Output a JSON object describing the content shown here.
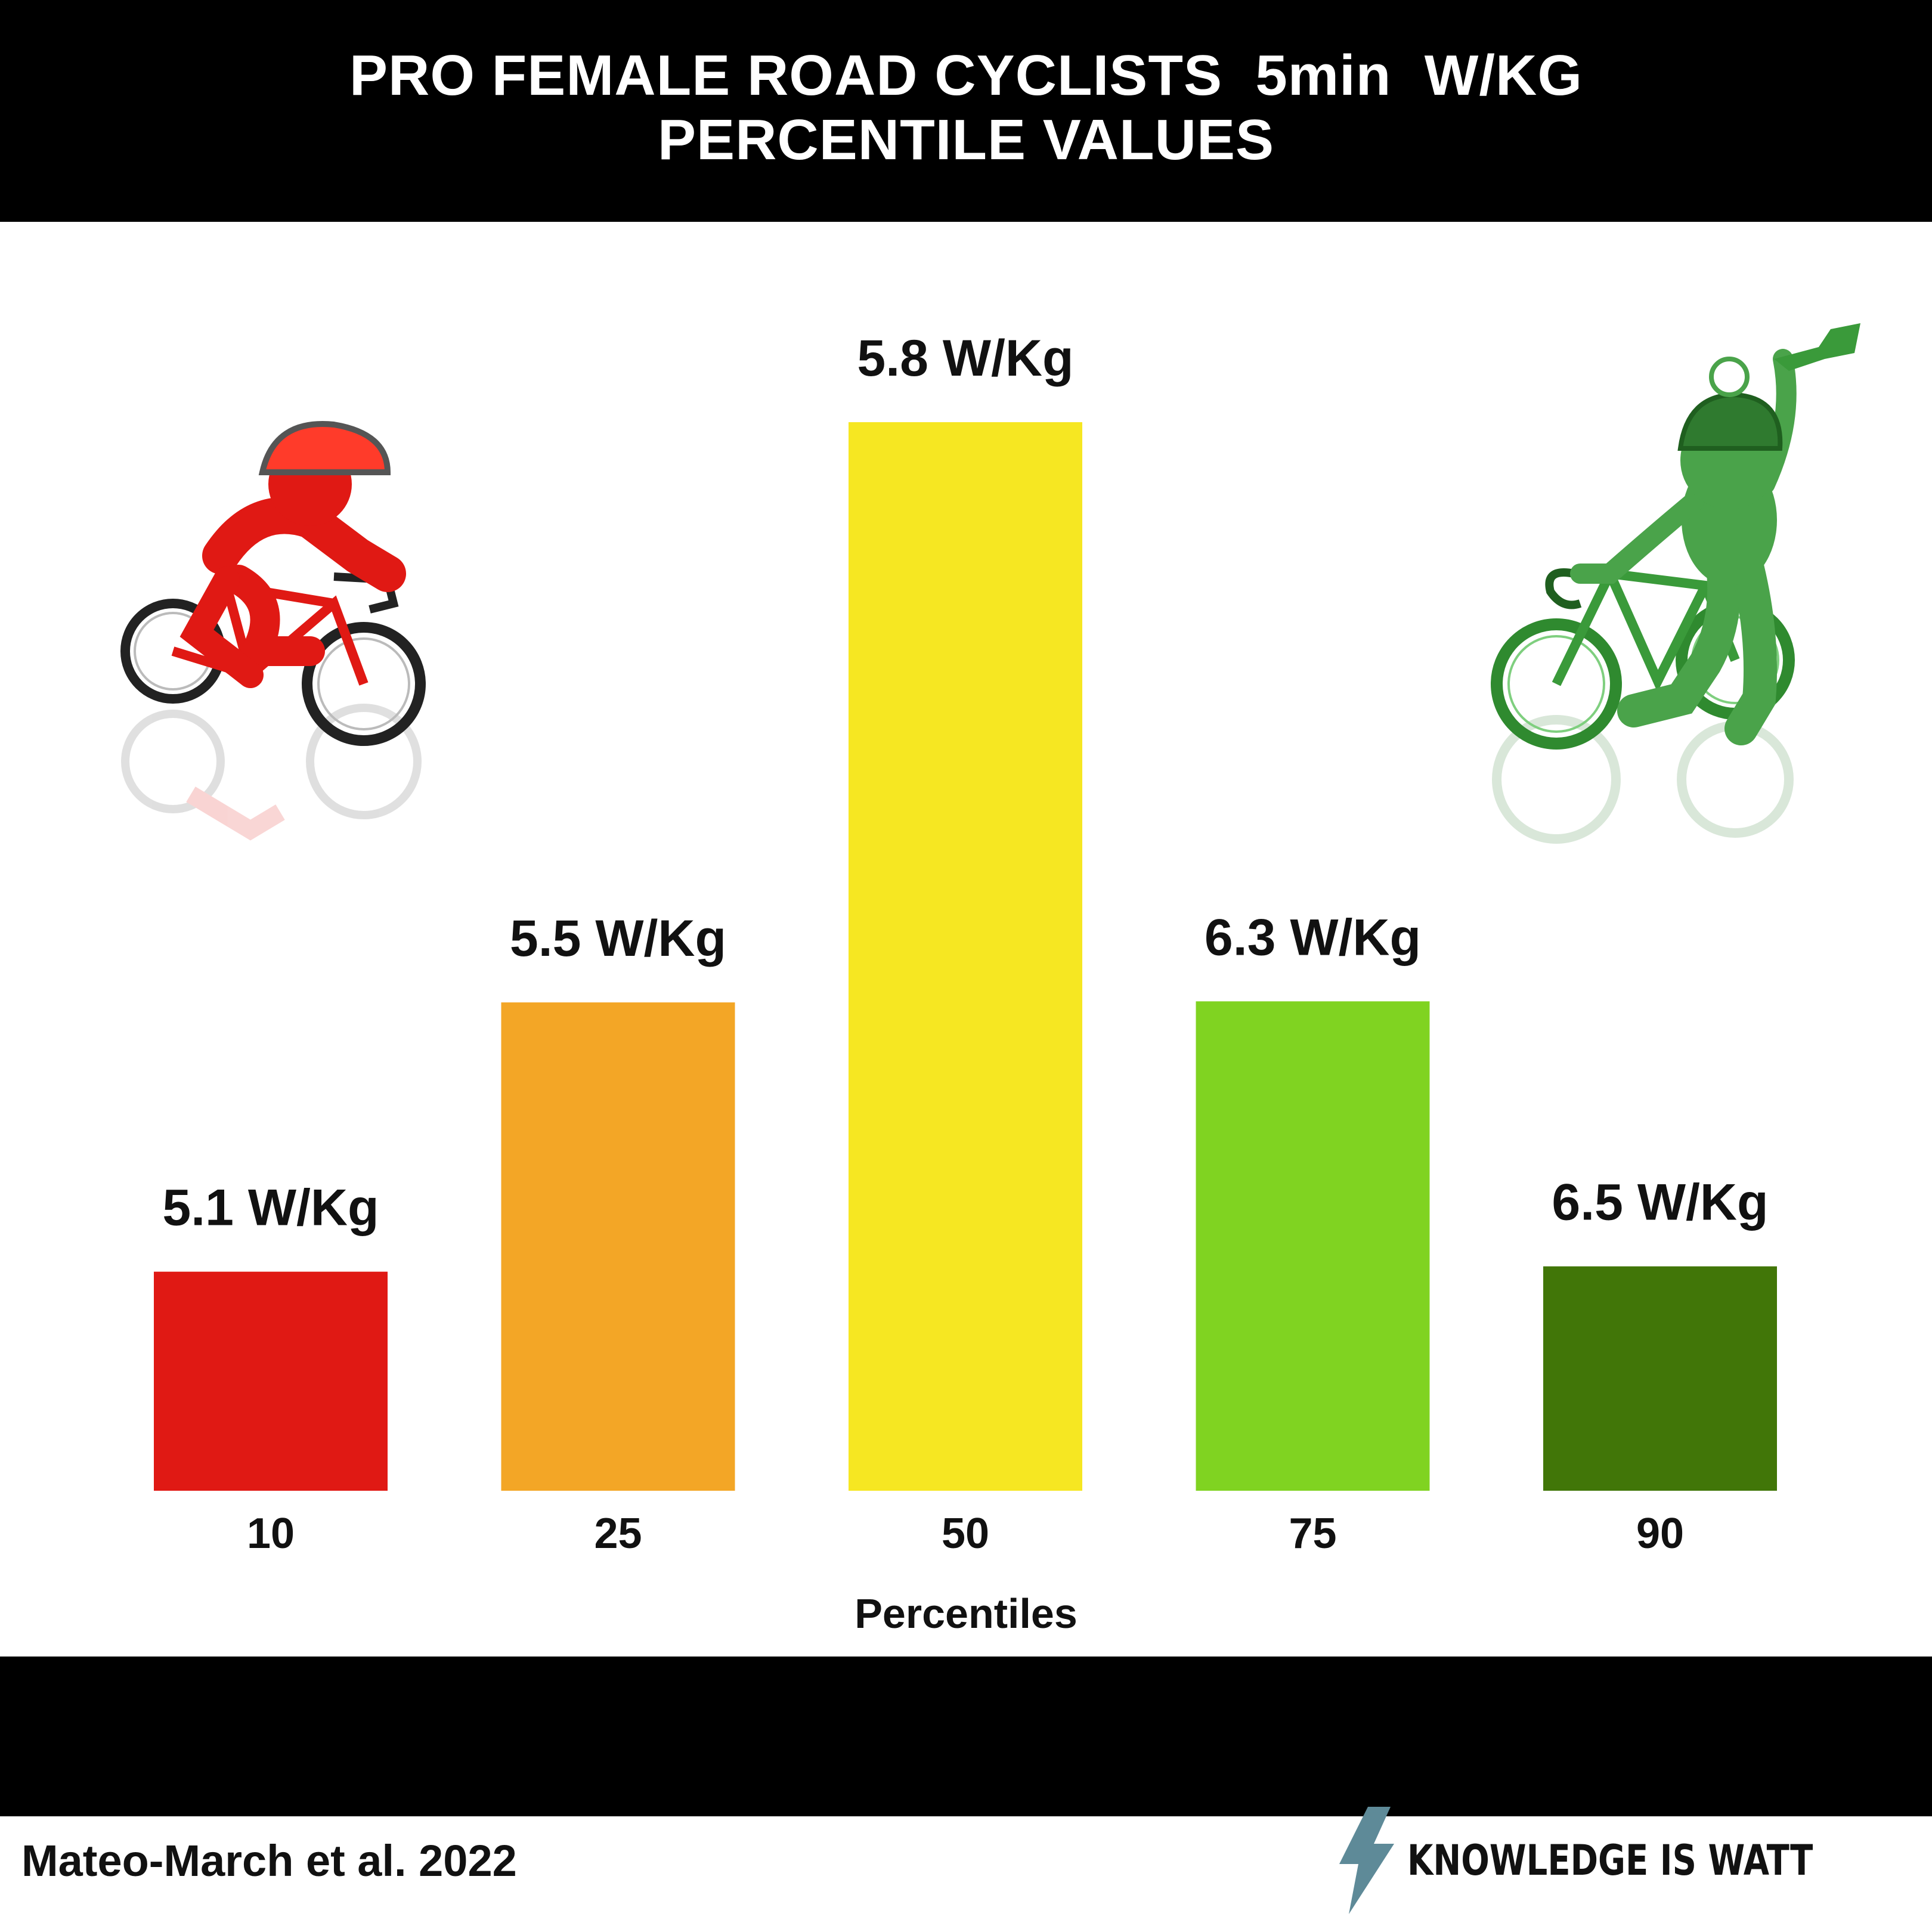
{
  "title": {
    "line1": "PRO FEMALE ROAD CYCLISTS  5min  W/KG",
    "line2": "PERCENTILE VALUES"
  },
  "chart_data": {
    "type": "bar",
    "categories": [
      "10",
      "25",
      "50",
      "75",
      "90"
    ],
    "values": [
      5.1,
      5.5,
      5.8,
      6.3,
      6.5
    ],
    "data_labels": [
      "5.1 W/Kg",
      "5.5 W/Kg",
      "5.8 W/Kg",
      "6.3 W/Kg",
      "6.5 W/Kg"
    ],
    "bar_colors": [
      "#e01914",
      "#f3a626",
      "#f6e722",
      "#80d321",
      "#417608"
    ],
    "xlabel": "Percentiles",
    "ylabel": "",
    "grid": false,
    "legend": "none"
  },
  "footer": {
    "citation": "Mateo-March et al. 2022",
    "brand": "KNOWLEDGE IS WATT"
  },
  "icons": [
    "red-cyclist-icon",
    "green-cyclist-trophy-icon",
    "lightning-bolt-icon"
  ]
}
